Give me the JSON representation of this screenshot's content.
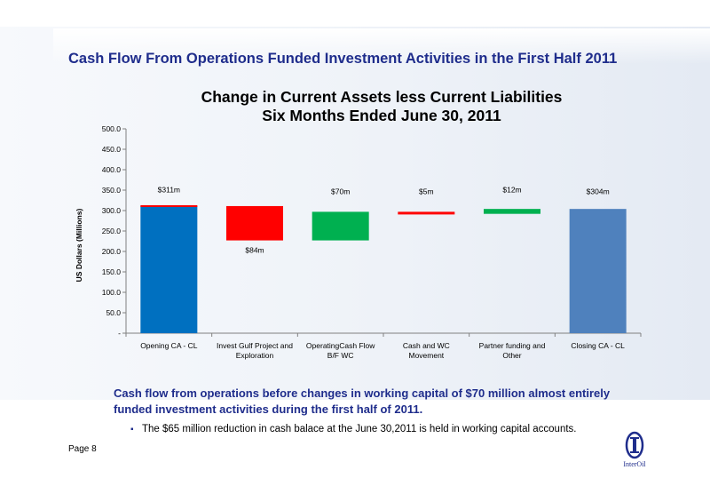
{
  "slide": {
    "title": "Cash Flow From Operations Funded Investment Activities in the First Half 2011",
    "summary": "Cash flow from operations before changes in working capital of $70 million almost entirely funded investment activities during the first half of 2011.",
    "bullet": "The $65 million reduction in cash balace at the June 30,2011 is held in working capital accounts.",
    "page_label": "Page 8",
    "logo_text": "InterOil"
  },
  "chart_data": {
    "type": "bar",
    "subtype": "waterfall",
    "title": "Change in Current Assets less Current Liabilities",
    "subtitle": "Six Months Ended June 30, 2011",
    "ylabel": "US Dollars (Millions)",
    "xlabel": "",
    "ylim": [
      0,
      500
    ],
    "yticks": [
      "-",
      "50.0",
      "100.0",
      "150.0",
      "200.0",
      "250.0",
      "300.0",
      "350.0",
      "400.0",
      "450.0",
      "500.0"
    ],
    "ytick_values": [
      0,
      50,
      100,
      150,
      200,
      250,
      300,
      350,
      400,
      450,
      500
    ],
    "grid": false,
    "legend": "none",
    "categories": [
      [
        "Opening CA - CL"
      ],
      [
        "Invest Gulf Project and",
        "Exploration"
      ],
      [
        "OperatingCash Flow",
        "B/F WC"
      ],
      [
        "Cash and WC",
        "Movement"
      ],
      [
        "Partner funding and",
        "Other"
      ],
      [
        "Closing CA - CL"
      ]
    ],
    "bars": [
      {
        "start": 0,
        "end": 311,
        "label": "$311m",
        "color": "#0070c0"
      },
      {
        "start": 311,
        "end": 227,
        "label": "$84m",
        "color": "#ff0000"
      },
      {
        "start": 227,
        "end": 297,
        "label": "$70m",
        "color": "#00b050"
      },
      {
        "start": 297,
        "end": 292,
        "label": "$5m",
        "color": "#ff0000"
      },
      {
        "start": 292,
        "end": 304,
        "label": "$12m",
        "color": "#00b050"
      },
      {
        "start": 0,
        "end": 304,
        "label": "$304m",
        "color": "#4f81bd"
      }
    ]
  }
}
